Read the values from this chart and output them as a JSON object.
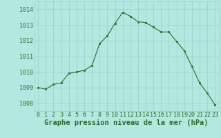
{
  "x": [
    0,
    1,
    2,
    3,
    4,
    5,
    6,
    7,
    8,
    9,
    10,
    11,
    12,
    13,
    14,
    15,
    16,
    17,
    18,
    19,
    20,
    21,
    22,
    23
  ],
  "y": [
    1009.0,
    1008.9,
    1009.2,
    1009.3,
    1009.9,
    1010.0,
    1010.1,
    1010.4,
    1011.8,
    1012.3,
    1013.1,
    1013.8,
    1013.55,
    1013.2,
    1013.15,
    1012.85,
    1012.55,
    1012.55,
    1011.95,
    1011.35,
    1010.35,
    1009.3,
    1008.65,
    1007.9
  ],
  "line_color": "#2d6a2d",
  "marker": "s",
  "marker_size": 2.0,
  "bg_color": "#b3e8e0",
  "grid_color": "#99cccc",
  "xlabel": "Graphe pression niveau de la mer (hPa)",
  "xlabel_fontsize": 7.5,
  "ylim": [
    1007.5,
    1014.5
  ],
  "xlim": [
    -0.5,
    23.5
  ],
  "yticks": [
    1008,
    1009,
    1010,
    1011,
    1012,
    1013,
    1014
  ],
  "xticks": [
    0,
    1,
    2,
    3,
    4,
    5,
    6,
    7,
    8,
    9,
    10,
    11,
    12,
    13,
    14,
    15,
    16,
    17,
    18,
    19,
    20,
    21,
    22,
    23
  ],
  "tick_fontsize": 6.0,
  "line_color_dark": "#2d6a2d"
}
